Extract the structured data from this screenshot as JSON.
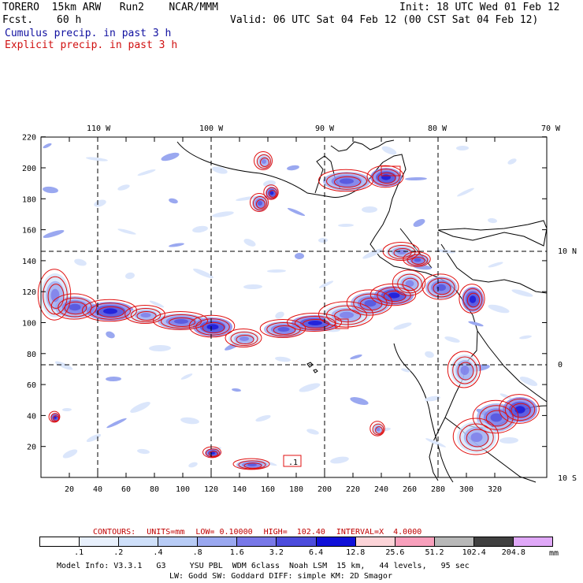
{
  "header": {
    "model": "TORERO  15km ARW   Run2    NCAR/MMM",
    "init": "Init: 18 UTC Wed 01 Feb 12",
    "fcst_label": "Fcst.",
    "fcst_value": "60 h",
    "valid": "Valid: 06 UTC Sat 04 Feb 12 (00 CST Sat 04 Feb 12)",
    "cumulus": "Cumulus precip. in past 3 h",
    "explicit": "Explicit precip. in past 3 h"
  },
  "map": {
    "lon_labels": [
      "110 W",
      "100 W",
      "90 W",
      "80 W",
      "70 W"
    ],
    "lat_labels": [
      "10 N",
      "0",
      "10 S"
    ],
    "grid_x_labels": [
      "20",
      "40",
      "60",
      "80",
      "100",
      "120",
      "140",
      "160",
      "180",
      "200",
      "220",
      "240",
      "260",
      "280",
      "300",
      "320"
    ],
    "grid_y_labels": [
      "20",
      "40",
      "60",
      "80",
      "100",
      "120",
      "140",
      "160",
      "180",
      "200",
      "220"
    ],
    "box_label": ".1"
  },
  "legend": {
    "contours_label": "CONTOURS:",
    "units": "UNITS=mm",
    "low": "LOW= 0.10000",
    "high": "HIGH=  102.40",
    "interval": "INTERVAL=X  4.0000",
    "unit": "mm",
    "levels": [
      ".1",
      ".2",
      ".4",
      ".8",
      "1.6",
      "3.2",
      "6.4",
      "12.8",
      "25.6",
      "51.2",
      "102.4",
      "204.8"
    ],
    "colors": [
      "#ffffff",
      "#e8f0fc",
      "#cfe0fa",
      "#b8ccf6",
      "#9aa8f0",
      "#7878e8",
      "#4c4cdc",
      "#1010d8",
      "#fcd4d8",
      "#f8a0bc",
      "#b8b8b8",
      "#404040",
      "#e0a8f8"
    ]
  },
  "footer": {
    "line1": "Model Info: V3.3.1   G3     YSU PBL  WDM 6class  Noah LSM  15 km,   44 levels,   95 sec",
    "line2": "LW: Godd SW: Goddard DIFF: simple KM: 2D Smagor"
  }
}
